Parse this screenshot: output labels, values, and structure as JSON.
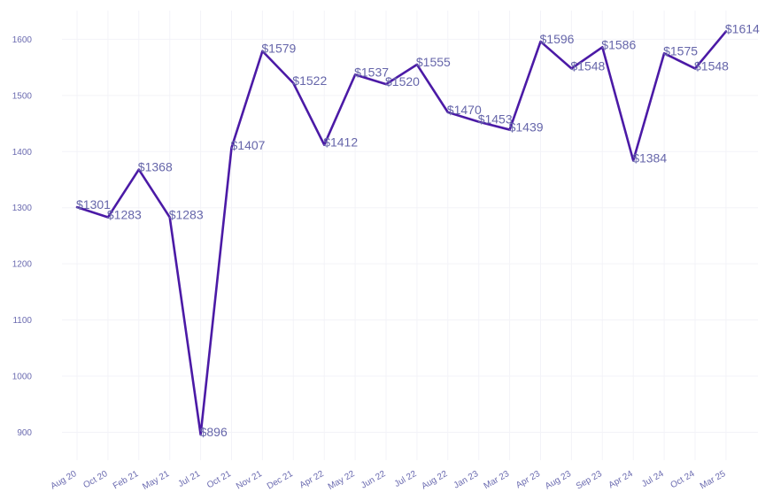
{
  "chart_data": {
    "type": "line",
    "categories": [
      "Aug 20",
      "Oct 20",
      "Feb 21",
      "May 21",
      "Jul 21",
      "Oct 21",
      "Nov 21",
      "Dec 21",
      "Apr 22",
      "May 22",
      "Jun 22",
      "Jul 22",
      "Aug 22",
      "Jan 23",
      "Mar 23",
      "Apr 23",
      "Aug 23",
      "Sep 23",
      "Apr 24",
      "Jul 24",
      "Oct 24",
      "Mar 25"
    ],
    "values": [
      1301,
      1283,
      1368,
      1283,
      896,
      1407,
      1579,
      1522,
      1412,
      1537,
      1520,
      1555,
      1470,
      1453,
      1439,
      1596,
      1548,
      1586,
      1384,
      1575,
      1548,
      1614
    ],
    "data_labels": [
      "$1301",
      "$1283",
      "$1368",
      "$1283",
      "$896",
      "$1407",
      "$1579",
      "$1522",
      "$1412",
      "$1537",
      "$1520",
      "$1555",
      "$1470",
      "$1453",
      "$1439",
      "$1596",
      "$1548",
      "$1586",
      "$1384",
      "$1575",
      "$1548",
      "$1614"
    ],
    "title": "",
    "xlabel": "",
    "ylabel": "",
    "y_ticks": [
      900,
      1000,
      1100,
      1200,
      1300,
      1400,
      1500,
      1600
    ],
    "y_tick_labels": [
      "900",
      "1000",
      "1100",
      "1200",
      "1300",
      "1400",
      "1500",
      "1600"
    ],
    "ylim": [
      850,
      1650
    ],
    "grid": true,
    "legend": "none",
    "colors": {
      "line": "#4b1aa6",
      "label": "#6666aa",
      "grid": "#f3f3f8",
      "tick": "#6b6bb0"
    }
  }
}
